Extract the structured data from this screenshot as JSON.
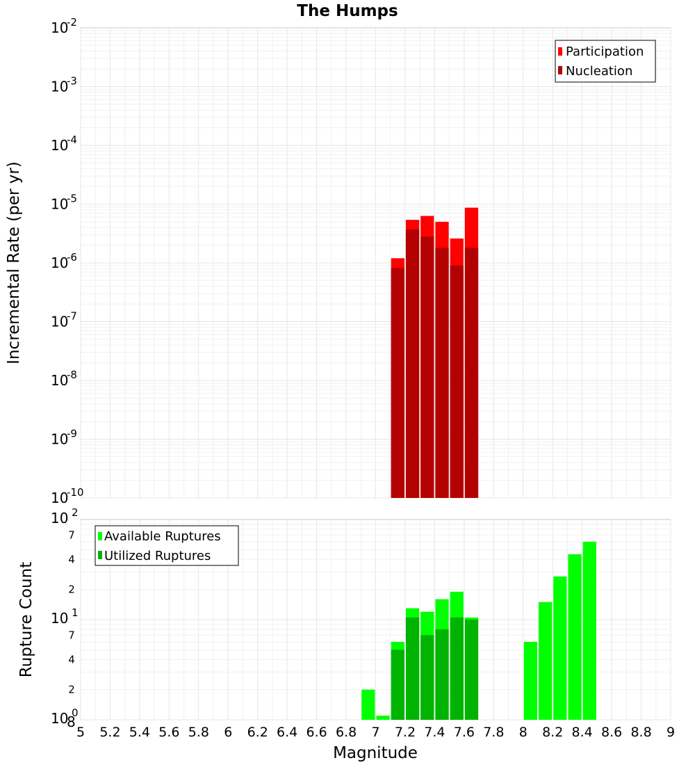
{
  "chart_data": [
    {
      "type": "bar",
      "title": "The Humps",
      "ylabel": "Incremental Rate (per yr)",
      "xlabel": "",
      "yscale": "log",
      "ylim_exp": [
        -10,
        -2
      ],
      "xlim": [
        5,
        9
      ],
      "grid": true,
      "legend_position": "top-right",
      "y_tick_labels": [
        {
          "exp": -10,
          "base": "10",
          "sup": "-10"
        },
        {
          "exp": -9,
          "base": "10",
          "sup": "-9"
        },
        {
          "exp": -8,
          "base": "10",
          "sup": "-8"
        },
        {
          "exp": -7,
          "base": "10",
          "sup": "-7"
        },
        {
          "exp": -6,
          "base": "10",
          "sup": "-6"
        },
        {
          "exp": -5,
          "base": "10",
          "sup": "-5"
        },
        {
          "exp": -4,
          "base": "10",
          "sup": "-4"
        },
        {
          "exp": -3,
          "base": "10",
          "sup": "-3"
        },
        {
          "exp": -2,
          "base": "10",
          "sup": "-2"
        }
      ],
      "series": [
        {
          "name": "Participation",
          "color": "#ff0000",
          "x": [
            7.15,
            7.25,
            7.35,
            7.45,
            7.55,
            7.65
          ],
          "values": [
            1.2e-06,
            5.4e-06,
            6.3e-06,
            5e-06,
            2.6e-06,
            8.7e-06
          ]
        },
        {
          "name": "Nucleation",
          "color": "#b30000",
          "x": [
            7.15,
            7.25,
            7.35,
            7.45,
            7.55,
            7.65
          ],
          "values": [
            8.2e-07,
            3.7e-06,
            2.8e-06,
            1.8e-06,
            9e-07,
            1.8e-06
          ]
        }
      ]
    },
    {
      "type": "bar",
      "title": "",
      "ylabel": "Rupture Count",
      "xlabel": "Magnitude",
      "yscale": "log",
      "ylim": [
        1,
        100
      ],
      "xlim": [
        5,
        9
      ],
      "grid": true,
      "legend_position": "top-left",
      "x_tick_labels": [
        "5",
        "5.2",
        "5.4",
        "5.6",
        "5.8",
        "6",
        "6.2",
        "6.4",
        "6.6",
        "6.8",
        "7",
        "7.2",
        "7.4",
        "7.6",
        "7.8",
        "8",
        "8.2",
        "8.4",
        "8.6",
        "8.8",
        "9"
      ],
      "y_major_ticks": [
        {
          "value": 1,
          "base": "10",
          "sup": "0",
          "overlap": "8"
        },
        {
          "value": 10,
          "base": "10",
          "sup": "1"
        },
        {
          "value": 100,
          "base": "10",
          "sup": "2"
        }
      ],
      "y_minor_ticks": [
        {
          "value": 2,
          "label": "2"
        },
        {
          "value": 4,
          "label": "4"
        },
        {
          "value": 7,
          "label": "7"
        },
        {
          "value": 20,
          "label": "2"
        },
        {
          "value": 40,
          "label": "4"
        },
        {
          "value": 70,
          "label": "7"
        }
      ],
      "series": [
        {
          "name": "Available Ruptures",
          "color": "#00ff00",
          "x": [
            6.95,
            7.05,
            7.15,
            7.25,
            7.35,
            7.45,
            7.55,
            7.65,
            8.05,
            8.15,
            8.25,
            8.35,
            8.45
          ],
          "values": [
            2,
            1.1,
            6,
            13,
            12,
            16,
            19,
            10.5,
            6,
            15,
            27,
            45,
            60
          ]
        },
        {
          "name": "Utilized Ruptures",
          "color": "#00b300",
          "x": [
            7.15,
            7.25,
            7.35,
            7.45,
            7.55,
            7.65
          ],
          "values": [
            5,
            10.5,
            7,
            8,
            10.5,
            10
          ]
        }
      ]
    }
  ]
}
